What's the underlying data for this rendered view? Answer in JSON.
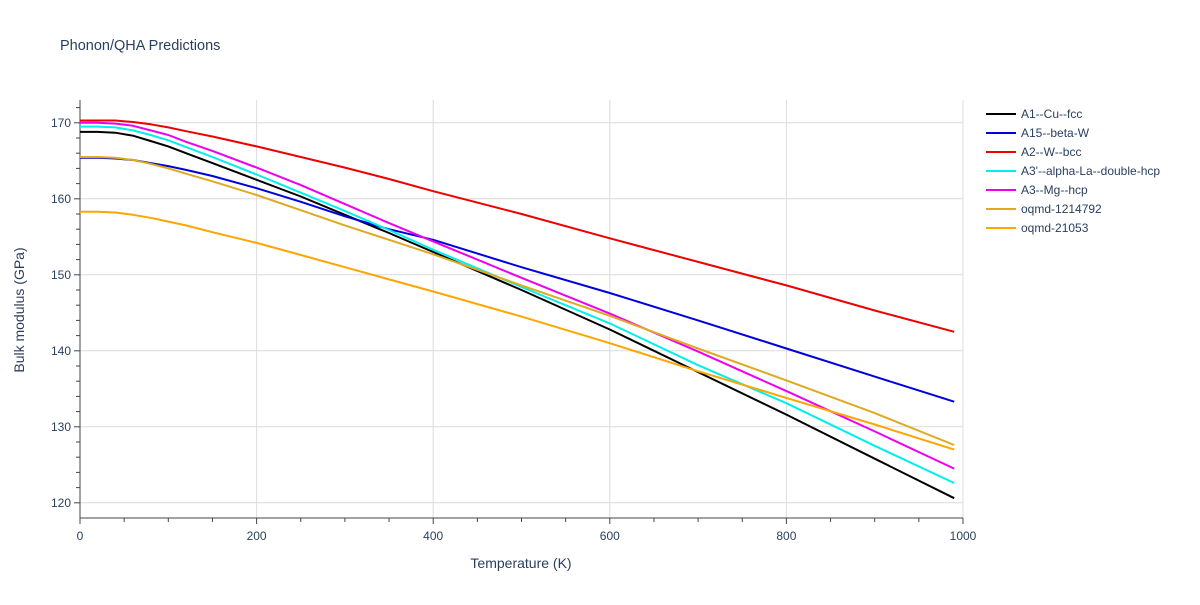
{
  "chart_data": {
    "type": "line",
    "title": "Phonon/QHA Predictions",
    "xlabel": "Temperature (K)",
    "ylabel": "Bulk modulus (GPa)",
    "xlim": [
      0,
      1000
    ],
    "ylim": [
      118,
      173
    ],
    "xticks": [
      0,
      200,
      400,
      600,
      800,
      1000
    ],
    "yticks": [
      120,
      130,
      140,
      150,
      160,
      170
    ],
    "grid": true,
    "legend_position": "top-right",
    "series": [
      {
        "name": "A1--Cu--fcc",
        "color": "#000000",
        "x": [
          0,
          20,
          40,
          60,
          80,
          100,
          120,
          150,
          200,
          250,
          300,
          350,
          400,
          500,
          600,
          700,
          800,
          900,
          990
        ],
        "y": [
          168.8,
          168.8,
          168.7,
          168.3,
          167.6,
          166.9,
          166.0,
          164.7,
          162.5,
          160.3,
          157.9,
          155.5,
          153.0,
          148.0,
          142.8,
          137.2,
          131.6,
          125.8,
          120.6
        ]
      },
      {
        "name": "A15--beta-W",
        "color": "#0000dd",
        "x": [
          0,
          20,
          40,
          60,
          80,
          100,
          120,
          150,
          200,
          250,
          300,
          350,
          400,
          500,
          600,
          700,
          800,
          900,
          990
        ],
        "y": [
          165.4,
          165.4,
          165.3,
          165.1,
          164.7,
          164.3,
          163.8,
          163.0,
          161.4,
          159.6,
          157.7,
          156.0,
          154.6,
          151.0,
          147.6,
          144.0,
          140.3,
          136.6,
          133.3
        ]
      },
      {
        "name": "A2--W--bcc",
        "color": "#ee0000",
        "x": [
          0,
          20,
          40,
          60,
          80,
          100,
          120,
          150,
          200,
          250,
          300,
          350,
          400,
          500,
          600,
          700,
          800,
          900,
          990
        ],
        "y": [
          170.3,
          170.3,
          170.3,
          170.1,
          169.8,
          169.4,
          168.9,
          168.2,
          166.9,
          165.5,
          164.1,
          162.6,
          161.0,
          158.0,
          154.8,
          151.7,
          148.6,
          145.3,
          142.5
        ]
      },
      {
        "name": "A3'--alpha-La--double-hcp",
        "color": "#00eeee",
        "x": [
          0,
          20,
          40,
          60,
          80,
          100,
          120,
          150,
          200,
          250,
          300,
          350,
          400,
          500,
          600,
          700,
          800,
          900,
          990
        ],
        "y": [
          169.5,
          169.5,
          169.4,
          169.0,
          168.4,
          167.7,
          166.8,
          165.5,
          163.2,
          160.8,
          158.4,
          155.9,
          153.3,
          148.4,
          143.6,
          138.1,
          133.1,
          127.5,
          122.6
        ]
      },
      {
        "name": "A3--Mg--hcp",
        "color": "#ee00ee",
        "x": [
          0,
          20,
          40,
          60,
          80,
          100,
          120,
          150,
          200,
          250,
          300,
          350,
          400,
          500,
          600,
          700,
          800,
          900,
          990
        ],
        "y": [
          170.0,
          170.0,
          169.9,
          169.6,
          169.0,
          168.4,
          167.5,
          166.3,
          164.1,
          161.8,
          159.3,
          156.8,
          154.4,
          149.6,
          144.9,
          139.9,
          134.7,
          129.4,
          124.5
        ]
      },
      {
        "name": "oqmd-1214792",
        "color": "#ddaa22",
        "x": [
          0,
          20,
          40,
          60,
          80,
          100,
          120,
          150,
          200,
          250,
          300,
          350,
          400,
          500,
          600,
          700,
          800,
          900,
          990
        ],
        "y": [
          165.5,
          165.5,
          165.4,
          165.1,
          164.6,
          164.0,
          163.3,
          162.3,
          160.5,
          158.5,
          156.5,
          154.6,
          152.7,
          148.6,
          144.6,
          140.3,
          136.1,
          131.8,
          127.6
        ]
      },
      {
        "name": "oqmd-21053",
        "color": "#ffa500",
        "x": [
          0,
          20,
          40,
          60,
          80,
          100,
          120,
          150,
          200,
          250,
          300,
          350,
          400,
          500,
          600,
          700,
          800,
          900,
          990
        ],
        "y": [
          158.3,
          158.3,
          158.2,
          157.9,
          157.5,
          157.0,
          156.5,
          155.6,
          154.2,
          152.6,
          151.0,
          149.4,
          147.8,
          144.5,
          141.0,
          137.3,
          133.8,
          130.3,
          127.0
        ]
      }
    ]
  }
}
